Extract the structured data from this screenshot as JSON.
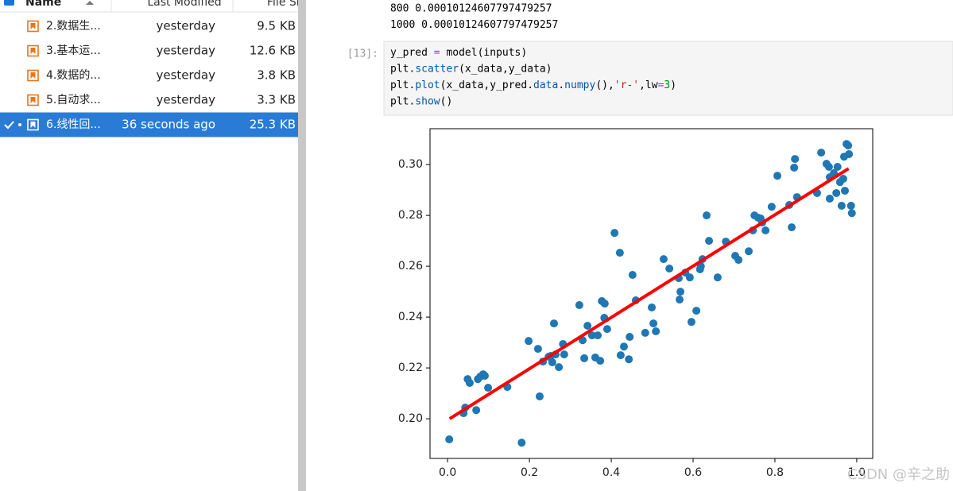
{
  "file_browser": {
    "columns": [
      "Name",
      "Last Modified",
      "File Size"
    ],
    "files": [
      {
        "name": "2.数据生...",
        "modified": "yesterday",
        "size": "9.5 KB"
      },
      {
        "name": "3.基本运...",
        "modified": "yesterday",
        "size": "12.6 KB"
      },
      {
        "name": "4.数据的...",
        "modified": "yesterday",
        "size": "3.8 KB"
      },
      {
        "name": "5.自动求...",
        "modified": "yesterday",
        "size": "3.3 KB"
      },
      {
        "name": "6.线性回...",
        "modified": "36 seconds ago",
        "size": "25.3 KB",
        "selected": true
      }
    ]
  },
  "notebook": {
    "output": [
      "800 0.00010124607797479257",
      "1000 0.00010124607797479257"
    ],
    "prompt": "[13]:",
    "code": [
      [
        {
          "text": "y_pred ",
          "color": "#000000"
        },
        {
          "text": "=",
          "color": "#aa22ff"
        },
        {
          "text": " model(inputs)",
          "color": "#000000"
        }
      ],
      [
        {
          "text": "plt.",
          "color": "#000000"
        },
        {
          "text": "scatter",
          "color": "#0055aa"
        },
        {
          "text": "(x_data,y_data)",
          "color": "#000000"
        }
      ],
      [
        {
          "text": "plt.",
          "color": "#000000"
        },
        {
          "text": "plot",
          "color": "#0055aa"
        },
        {
          "text": "(x_data,y_pred.",
          "color": "#000000"
        },
        {
          "text": "data",
          "color": "#0055aa"
        },
        {
          "text": ".",
          "color": "#000000"
        },
        {
          "text": "numpy",
          "color": "#0055aa"
        },
        {
          "text": "(),",
          "color": "#000000"
        },
        {
          "text": "'r-'",
          "color": "#ba2121"
        },
        {
          "text": ",lw",
          "color": "#000000"
        },
        {
          "text": "=",
          "color": "#aa22ff"
        },
        {
          "text": "3",
          "color": "#008800"
        },
        {
          "text": ")",
          "color": "#000000"
        }
      ],
      [
        {
          "text": "plt.",
          "color": "#000000"
        },
        {
          "text": "show",
          "color": "#0055aa"
        },
        {
          "text": "()",
          "color": "#000000"
        }
      ]
    ]
  },
  "chart_data": {
    "type": "scatter",
    "xlim": [
      -0.043,
      1.039
    ],
    "ylim": [
      0.1844,
      0.3141
    ],
    "xticks": [
      {
        "value": 0,
        "label": "0.0"
      },
      0.2,
      0.4,
      0.6,
      0.8,
      {
        "value": 1,
        "label": "1.0"
      }
    ],
    "yticks": [
      {
        "value": 0.2,
        "label": "0.20"
      },
      0.22,
      0.24,
      0.26,
      0.28,
      {
        "value": 0.3,
        "label": "0.30"
      }
    ],
    "series": [
      {
        "kind": "scatter",
        "color": "#1f77b4",
        "x": [
          0.004,
          0.039,
          0.043,
          0.049,
          0.054,
          0.07,
          0.074,
          0.08,
          0.087,
          0.091,
          0.099,
          0.146,
          0.181,
          0.198,
          0.221,
          0.225,
          0.233,
          0.247,
          0.252,
          0.256,
          0.26,
          0.264,
          0.272,
          0.282,
          0.285,
          0.322,
          0.33,
          0.334,
          0.342,
          0.353,
          0.361,
          0.367,
          0.373,
          0.377,
          0.383,
          0.384,
          0.39,
          0.408,
          0.421,
          0.423,
          0.431,
          0.443,
          0.445,
          0.452,
          0.46,
          0.483,
          0.499,
          0.503,
          0.509,
          0.528,
          0.542,
          0.565,
          0.567,
          0.569,
          0.581,
          0.592,
          0.596,
          0.608,
          0.617,
          0.619,
          0.623,
          0.633,
          0.639,
          0.66,
          0.68,
          0.703,
          0.711,
          0.736,
          0.746,
          0.75,
          0.759,
          0.765,
          0.769,
          0.777,
          0.792,
          0.806,
          0.835,
          0.841,
          0.847,
          0.849,
          0.854,
          0.903,
          0.913,
          0.926,
          0.932,
          0.934,
          0.934,
          0.944,
          0.95,
          0.953,
          0.959,
          0.963,
          0.969,
          0.967,
          0.971,
          0.975,
          0.979,
          0.981,
          0.986,
          0.988
        ],
        "values": [
          0.1919,
          0.2022,
          0.2044,
          0.2156,
          0.2141,
          0.2034,
          0.2156,
          0.2166,
          0.2175,
          0.2169,
          0.2122,
          0.2125,
          0.1906,
          0.2306,
          0.2275,
          0.2088,
          0.2225,
          0.2244,
          0.2247,
          0.2222,
          0.2375,
          0.2253,
          0.2203,
          0.2294,
          0.2253,
          0.2447,
          0.2309,
          0.2238,
          0.2366,
          0.2328,
          0.2241,
          0.2328,
          0.2228,
          0.2463,
          0.2397,
          0.2453,
          0.2353,
          0.2731,
          0.2653,
          0.225,
          0.2284,
          0.2234,
          0.2322,
          0.2566,
          0.2466,
          0.2338,
          0.2438,
          0.2375,
          0.2344,
          0.2628,
          0.2591,
          0.2553,
          0.2469,
          0.25,
          0.2575,
          0.2556,
          0.2381,
          0.2425,
          0.2588,
          0.26,
          0.2628,
          0.28,
          0.27,
          0.2556,
          0.2697,
          0.2641,
          0.2625,
          0.2659,
          0.2741,
          0.28,
          0.2791,
          0.2788,
          0.2772,
          0.2741,
          0.2834,
          0.2956,
          0.2841,
          0.2753,
          0.2988,
          0.3022,
          0.2872,
          0.2888,
          0.3047,
          0.3003,
          0.2991,
          0.2866,
          0.295,
          0.2966,
          0.2888,
          0.2991,
          0.2931,
          0.2838,
          0.3031,
          0.2944,
          0.2897,
          0.3081,
          0.3075,
          0.3041,
          0.2838,
          0.2809
        ]
      },
      {
        "kind": "line",
        "color": "#ff0000",
        "x": [
          0.005,
          0.98
        ],
        "values": [
          0.2,
          0.2984
        ]
      }
    ]
  },
  "watermark": "CSDN @辛之助"
}
